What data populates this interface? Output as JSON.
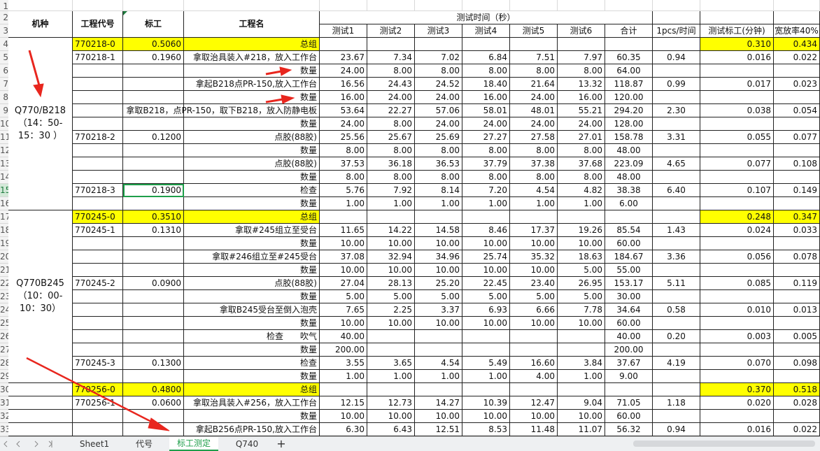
{
  "header": {
    "row0": {
      "machine": "机种",
      "code": "工程代号",
      "std": "标工",
      "process": "工程名",
      "time": "测试时间（秒）"
    },
    "row1": [
      "测试1",
      "测试2",
      "测试3",
      "测试4",
      "测试5",
      "测试6",
      "合计",
      "1pcs/时间",
      "测试标工(分钟)",
      "宽放率40%"
    ]
  },
  "row_numbers": [
    1,
    2,
    3,
    4,
    5,
    6,
    7,
    8,
    9,
    10,
    11,
    12,
    13,
    14,
    15,
    16,
    17,
    18,
    19,
    20,
    21,
    22,
    23,
    24,
    25,
    26,
    27,
    28,
    29,
    30,
    31,
    32,
    33
  ],
  "groups": [
    {
      "start": 0,
      "end": 12,
      "lines": [
        "Q770/B218",
        "（14：50-",
        "15：30 ）"
      ]
    },
    {
      "start": 13,
      "end": 25,
      "lines": [
        "Q770B245",
        "（10：00-",
        "10：30）"
      ]
    }
  ],
  "selected_cell": {
    "row": 11,
    "col": 1
  },
  "rows": [
    {
      "highlight": true,
      "cells": [
        "770218-0",
        "0.5060",
        "总组",
        null,
        null,
        null,
        null,
        null,
        null,
        null,
        null,
        "0.310",
        "0.434"
      ]
    },
    {
      "cells": [
        "770218-1",
        "0.1960",
        "拿取治具装入#218，放入工作台",
        "23.67",
        "7.34",
        "7.02",
        "6.84",
        "7.51",
        "7.97",
        "60.35",
        "0.94",
        "0.016",
        "0.022"
      ]
    },
    {
      "cells": [
        null,
        null,
        "数量",
        "24.00",
        "8.00",
        "8.00",
        "8.00",
        "8.00",
        "8.00",
        "64.00",
        null,
        null,
        null
      ]
    },
    {
      "cells": [
        null,
        null,
        "拿起B218点PR-150,放入工作台",
        "16.56",
        "24.43",
        "24.52",
        "18.40",
        "21.64",
        "13.32",
        "118.87",
        "0.99",
        "0.017",
        "0.023"
      ]
    },
    {
      "cells": [
        null,
        null,
        "数量",
        "16.00",
        "24.00",
        "24.00",
        "16.00",
        "24.00",
        "16.00",
        "120.00",
        null,
        null,
        null
      ]
    },
    {
      "cells": [
        null,
        null,
        "拿取B218，点PR-150，取下B218，放入防静电板",
        "53.64",
        "22.27",
        "57.06",
        "58.01",
        "48.01",
        "55.21",
        "294.20",
        "2.30",
        "0.038",
        "0.054"
      ]
    },
    {
      "cells": [
        null,
        null,
        "数量",
        "24.00",
        "8.00",
        "24.00",
        "24.00",
        "24.00",
        "24.00",
        "128.00",
        null,
        null,
        null
      ]
    },
    {
      "cells": [
        "770218-2",
        "0.1200",
        "点胶(88胶)",
        "25.56",
        "25.67",
        "25.69",
        "27.27",
        "27.58",
        "27.01",
        "158.78",
        "3.31",
        "0.055",
        "0.077"
      ]
    },
    {
      "cells": [
        null,
        null,
        "数量",
        "8.00",
        "8.00",
        "8.00",
        "8.00",
        "8.00",
        "8.00",
        "48.00",
        null,
        null,
        null
      ]
    },
    {
      "cells": [
        null,
        null,
        "点胶(88胶)",
        "37.53",
        "36.18",
        "36.53",
        "37.79",
        "37.38",
        "37.68",
        "223.09",
        "4.65",
        "0.077",
        "0.108"
      ]
    },
    {
      "cells": [
        null,
        null,
        "数量",
        "8.00",
        "8.00",
        "8.00",
        "8.00",
        "8.00",
        "8.00",
        "48.00",
        null,
        null,
        null
      ]
    },
    {
      "cells": [
        "770218-3",
        "0.1900",
        "检查",
        "5.76",
        "7.92",
        "8.14",
        "7.20",
        "4.54",
        "4.82",
        "38.38",
        "6.40",
        "0.107",
        "0.149"
      ]
    },
    {
      "cells": [
        null,
        null,
        "数量",
        "1.00",
        "1.00",
        "1.00",
        "1.00",
        "1.00",
        "1.00",
        "6.00",
        null,
        null,
        null
      ]
    },
    {
      "highlight": true,
      "cells": [
        "770245-0",
        "0.3510",
        "总组",
        null,
        null,
        null,
        null,
        null,
        null,
        null,
        null,
        "0.248",
        "0.347"
      ]
    },
    {
      "cells": [
        "770245-1",
        "0.1310",
        "拿取#245组立至受台",
        "11.65",
        "14.22",
        "14.58",
        "8.46",
        "17.37",
        "19.26",
        "85.54",
        "1.43",
        "0.024",
        "0.033"
      ]
    },
    {
      "cells": [
        null,
        null,
        "数量",
        "10.00",
        "10.00",
        "10.00",
        "10.00",
        "10.00",
        "10.00",
        "60.00",
        null,
        null,
        null
      ]
    },
    {
      "cells": [
        null,
        null,
        "拿取#246组立至#245受台",
        "37.08",
        "32.94",
        "34.96",
        "25.74",
        "35.32",
        "18.63",
        "184.67",
        "3.36",
        "0.056",
        "0.078"
      ]
    },
    {
      "cells": [
        null,
        null,
        "数量",
        "10.00",
        "10.00",
        "10.00",
        "10.00",
        "10.00",
        "5.00",
        "55.00",
        null,
        null,
        null
      ]
    },
    {
      "cells": [
        "770245-2",
        "0.0900",
        "点胶(88胶)",
        "27.04",
        "28.13",
        "25.20",
        "22.45",
        "23.40",
        "26.95",
        "153.17",
        "5.11",
        "0.085",
        "0.119"
      ]
    },
    {
      "cells": [
        null,
        null,
        "数量",
        "5.00",
        "5.00",
        "5.00",
        "5.00",
        "5.00",
        "5.00",
        "30.00",
        null,
        null,
        null
      ]
    },
    {
      "cells": [
        null,
        null,
        "拿取B245受台至倒入泡壳",
        "7.65",
        "2.25",
        "3.37",
        "6.93",
        "6.66",
        "7.78",
        "34.64",
        "0.58",
        "0.010",
        "0.013"
      ]
    },
    {
      "cells": [
        null,
        null,
        "数量",
        "10.00",
        "10.00",
        "10.00",
        "10.00",
        "10.00",
        "10.00",
        "60.00",
        null,
        null,
        null
      ]
    },
    {
      "cells": [
        null,
        null,
        "检查　　吹气",
        "40.00",
        null,
        null,
        null,
        null,
        null,
        "40.00",
        "0.20",
        "0.003",
        "0.005"
      ]
    },
    {
      "cells": [
        null,
        null,
        "数量",
        "200.00",
        null,
        null,
        null,
        null,
        null,
        "200.00",
        null,
        null,
        null
      ]
    },
    {
      "cells": [
        "770245-3",
        "0.1300",
        "检查",
        "3.55",
        "3.65",
        "4.54",
        "5.49",
        "16.60",
        "3.84",
        "37.67",
        "4.19",
        "0.070",
        "0.098"
      ]
    },
    {
      "cells": [
        null,
        null,
        "数量",
        "1.00",
        "1.00",
        "1.00",
        "1.00",
        "4.00",
        "1.00",
        "9.00",
        null,
        null,
        null
      ]
    },
    {
      "highlight": true,
      "cells": [
        "770256-0",
        "0.4800",
        "总组",
        null,
        null,
        null,
        null,
        null,
        null,
        null,
        null,
        "0.370",
        "0.518"
      ]
    },
    {
      "cells": [
        "770256-1",
        "0.0600",
        "拿取治具装入#256，放入工作台",
        "12.15",
        "12.73",
        "14.27",
        "10.39",
        "12.47",
        "9.04",
        "71.05",
        "1.18",
        "0.020",
        "0.028"
      ]
    },
    {
      "cells": [
        null,
        null,
        "数量",
        "10.00",
        "10.00",
        "10.00",
        "10.00",
        "10.00",
        "10.00",
        "60.00",
        null,
        null,
        null
      ]
    },
    {
      "cells": [
        null,
        null,
        "拿起B256点PR-150,放入工作台",
        "6.30",
        "6.43",
        "12.51",
        "8.53",
        "11.48",
        "11.07",
        "56.32",
        "0.94",
        "0.016",
        "0.022"
      ]
    }
  ],
  "tabs": [
    {
      "label": "Sheet1"
    },
    {
      "label": "代号"
    },
    {
      "label": "标工测定",
      "active": true
    },
    {
      "label": "Q740"
    }
  ],
  "add_tab": "+"
}
